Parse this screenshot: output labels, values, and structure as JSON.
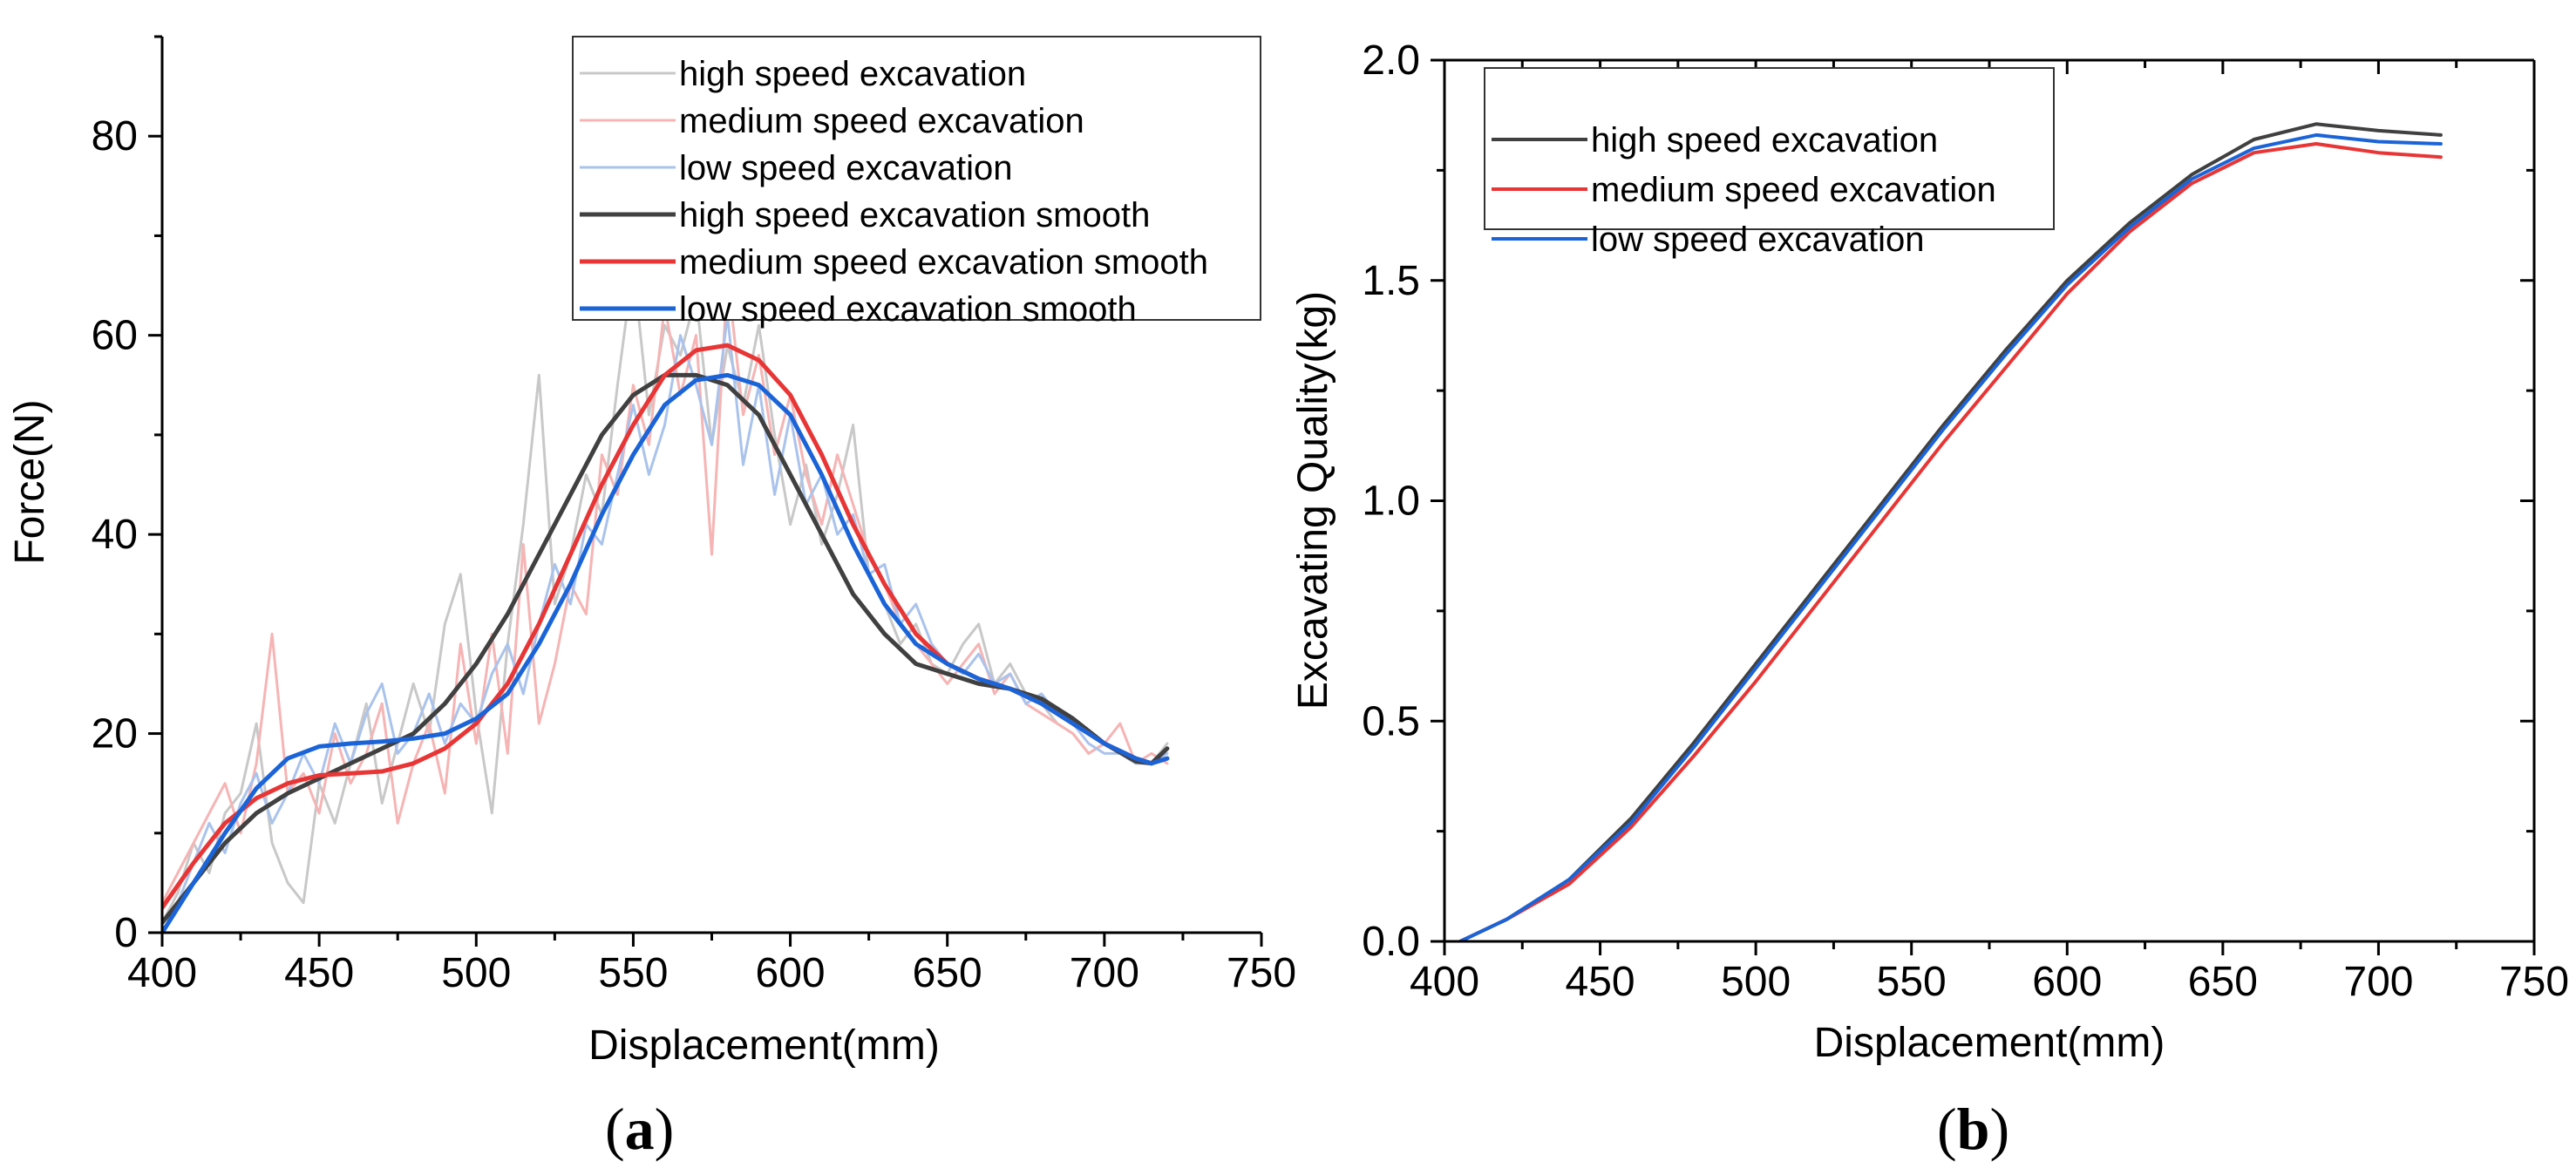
{
  "chart_data": [
    {
      "id": "a",
      "type": "line",
      "caption_letter": "a",
      "xlabel": "Displacement(mm)",
      "ylabel": "Force(N)",
      "xlim": [
        400,
        750
      ],
      "ylim": [
        0,
        90
      ],
      "xticks": [
        400,
        450,
        500,
        550,
        600,
        650,
        700,
        750
      ],
      "yticks": [
        0,
        20,
        40,
        60,
        80
      ],
      "legend_position": "top-right",
      "series": [
        {
          "name": "high speed excavation",
          "color": "#c8c8c8",
          "width": 3,
          "kind": "raw",
          "x": [
            400,
            405,
            410,
            415,
            420,
            425,
            430,
            435,
            440,
            445,
            450,
            455,
            460,
            465,
            470,
            475,
            480,
            485,
            490,
            495,
            500,
            505,
            510,
            515,
            520,
            525,
            530,
            535,
            540,
            545,
            550,
            555,
            560,
            565,
            570,
            575,
            580,
            585,
            590,
            595,
            600,
            605,
            610,
            615,
            620,
            625,
            630,
            635,
            640,
            645,
            650,
            655,
            660,
            665,
            670,
            675,
            680,
            685,
            690,
            695,
            700,
            705,
            710,
            715,
            720
          ],
          "y": [
            1,
            4,
            9,
            6,
            12,
            14,
            21,
            9,
            5,
            3,
            15,
            11,
            17,
            23,
            13,
            19,
            25,
            20,
            31,
            36,
            22,
            12,
            29,
            41,
            56,
            33,
            38,
            46,
            42,
            55,
            67,
            52,
            61,
            58,
            64,
            49,
            59,
            53,
            61,
            50,
            41,
            47,
            39,
            44,
            51,
            36,
            33,
            29,
            31,
            27,
            26,
            29,
            31,
            25,
            27,
            24,
            23,
            21,
            20,
            18,
            19,
            18,
            17,
            17,
            19
          ]
        },
        {
          "name": "medium speed excavation",
          "color": "#f6b4b4",
          "width": 3,
          "kind": "raw",
          "x": [
            400,
            405,
            410,
            415,
            420,
            425,
            430,
            435,
            440,
            445,
            450,
            455,
            460,
            465,
            470,
            475,
            480,
            485,
            490,
            495,
            500,
            505,
            510,
            515,
            520,
            525,
            530,
            535,
            540,
            545,
            550,
            555,
            560,
            565,
            570,
            575,
            580,
            585,
            590,
            595,
            600,
            605,
            610,
            615,
            620,
            625,
            630,
            635,
            640,
            645,
            650,
            655,
            660,
            665,
            670,
            675,
            680,
            685,
            690,
            695,
            700,
            705,
            710,
            715,
            720
          ],
          "y": [
            3,
            6,
            9,
            12,
            15,
            10,
            17,
            30,
            14,
            16,
            12,
            20,
            15,
            18,
            23,
            11,
            17,
            21,
            14,
            29,
            19,
            30,
            18,
            39,
            21,
            27,
            35,
            32,
            48,
            44,
            55,
            49,
            63,
            54,
            60,
            38,
            66,
            52,
            58,
            48,
            54,
            46,
            41,
            48,
            43,
            38,
            35,
            31,
            29,
            27,
            25,
            27,
            29,
            24,
            26,
            23,
            22,
            21,
            20,
            18,
            19,
            21,
            17,
            18,
            17
          ]
        },
        {
          "name": "low speed excavation",
          "color": "#aac3ec",
          "width": 3,
          "kind": "raw",
          "x": [
            400,
            405,
            410,
            415,
            420,
            425,
            430,
            435,
            440,
            445,
            450,
            455,
            460,
            465,
            470,
            475,
            480,
            485,
            490,
            495,
            500,
            505,
            510,
            515,
            520,
            525,
            530,
            535,
            540,
            545,
            550,
            555,
            560,
            565,
            570,
            575,
            580,
            585,
            590,
            595,
            600,
            605,
            610,
            615,
            620,
            625,
            630,
            635,
            640,
            645,
            650,
            655,
            660,
            665,
            670,
            675,
            680,
            685,
            690,
            695,
            700,
            705,
            710,
            715,
            720
          ],
          "y": [
            0,
            3,
            7,
            11,
            8,
            13,
            16,
            11,
            14,
            18,
            15,
            21,
            17,
            22,
            25,
            18,
            20,
            24,
            19,
            23,
            21,
            26,
            29,
            24,
            31,
            37,
            33,
            41,
            39,
            46,
            53,
            46,
            51,
            60,
            55,
            49,
            62,
            47,
            55,
            44,
            52,
            43,
            46,
            40,
            42,
            36,
            37,
            31,
            33,
            29,
            27,
            26,
            28,
            25,
            26,
            23,
            24,
            22,
            21,
            19,
            18,
            18,
            17,
            17,
            18
          ]
        },
        {
          "name": "high speed excavation smooth",
          "color": "#404040",
          "width": 5,
          "kind": "smooth",
          "x": [
            400,
            410,
            420,
            430,
            440,
            450,
            460,
            470,
            480,
            490,
            500,
            510,
            520,
            530,
            540,
            550,
            560,
            570,
            580,
            590,
            600,
            610,
            620,
            630,
            640,
            650,
            660,
            670,
            680,
            690,
            700,
            710,
            715,
            720
          ],
          "y": [
            1,
            5,
            9,
            12,
            14,
            15.5,
            17,
            18.5,
            20,
            23,
            27,
            32,
            38,
            44,
            50,
            54,
            56,
            56,
            55,
            52,
            46,
            40,
            34,
            30,
            27,
            26,
            25,
            24.5,
            23.5,
            21.5,
            19,
            17.2,
            17,
            18.5
          ]
        },
        {
          "name": "medium speed excavation smooth",
          "color": "#e83535",
          "width": 5,
          "kind": "smooth",
          "x": [
            400,
            410,
            420,
            430,
            440,
            450,
            460,
            470,
            480,
            490,
            500,
            510,
            520,
            530,
            540,
            550,
            560,
            570,
            580,
            590,
            600,
            610,
            620,
            630,
            640,
            650,
            660,
            670,
            680,
            690,
            700,
            710,
            715,
            720
          ],
          "y": [
            2.5,
            7,
            11,
            13.5,
            15,
            15.8,
            16,
            16.2,
            17,
            18.5,
            21,
            25,
            31,
            38,
            45,
            51,
            56,
            58.5,
            59,
            57.5,
            54,
            48,
            41,
            35,
            30,
            27,
            25.5,
            24.5,
            23,
            21,
            19,
            17.5,
            17,
            17.5
          ]
        },
        {
          "name": "low speed excavation smooth",
          "color": "#1a64d8",
          "width": 5,
          "kind": "smooth",
          "x": [
            400,
            410,
            420,
            430,
            440,
            450,
            460,
            470,
            480,
            490,
            500,
            510,
            520,
            530,
            540,
            550,
            560,
            570,
            580,
            590,
            600,
            610,
            620,
            630,
            640,
            650,
            660,
            670,
            680,
            690,
            700,
            710,
            715,
            720
          ],
          "y": [
            0,
            5,
            10,
            14.5,
            17.5,
            18.7,
            19,
            19.2,
            19.5,
            20,
            21.5,
            24,
            29,
            35,
            42,
            48,
            53,
            55.5,
            56,
            55,
            52,
            46,
            39,
            33,
            29,
            27,
            25.5,
            24.5,
            23,
            21,
            19,
            17.5,
            17,
            17.5
          ]
        }
      ]
    },
    {
      "id": "b",
      "type": "line",
      "caption_letter": "b",
      "xlabel": "Displacement(mm)",
      "ylabel": "Excavating Quality(kg)",
      "xlim": [
        400,
        750
      ],
      "ylim": [
        0,
        2.0
      ],
      "xticks": [
        400,
        450,
        500,
        550,
        600,
        650,
        700,
        750
      ],
      "yticks": [
        "0.0",
        "0.5",
        "1.0",
        "1.5",
        "2.0"
      ],
      "legend_position": "top-left",
      "series": [
        {
          "name": "high speed excavation",
          "color": "#404040",
          "width": 4,
          "x": [
            405,
            420,
            440,
            460,
            480,
            500,
            520,
            540,
            560,
            580,
            600,
            620,
            640,
            660,
            680,
            700,
            720
          ],
          "y": [
            0,
            0.05,
            0.14,
            0.28,
            0.45,
            0.63,
            0.81,
            0.99,
            1.17,
            1.34,
            1.5,
            1.63,
            1.74,
            1.82,
            1.855,
            1.84,
            1.83
          ]
        },
        {
          "name": "medium speed excavation",
          "color": "#e83535",
          "width": 4,
          "x": [
            405,
            420,
            440,
            460,
            480,
            500,
            520,
            540,
            560,
            580,
            600,
            620,
            640,
            660,
            680,
            700,
            720
          ],
          "y": [
            0,
            0.05,
            0.13,
            0.26,
            0.42,
            0.59,
            0.77,
            0.95,
            1.13,
            1.3,
            1.47,
            1.61,
            1.72,
            1.79,
            1.81,
            1.79,
            1.78
          ]
        },
        {
          "name": "low speed excavation",
          "color": "#1a64d8",
          "width": 4,
          "x": [
            405,
            420,
            440,
            460,
            480,
            500,
            520,
            540,
            560,
            580,
            600,
            620,
            640,
            660,
            680,
            700,
            720
          ],
          "y": [
            0,
            0.05,
            0.14,
            0.27,
            0.44,
            0.62,
            0.8,
            0.98,
            1.16,
            1.33,
            1.49,
            1.62,
            1.73,
            1.8,
            1.83,
            1.815,
            1.81
          ]
        }
      ]
    }
  ]
}
